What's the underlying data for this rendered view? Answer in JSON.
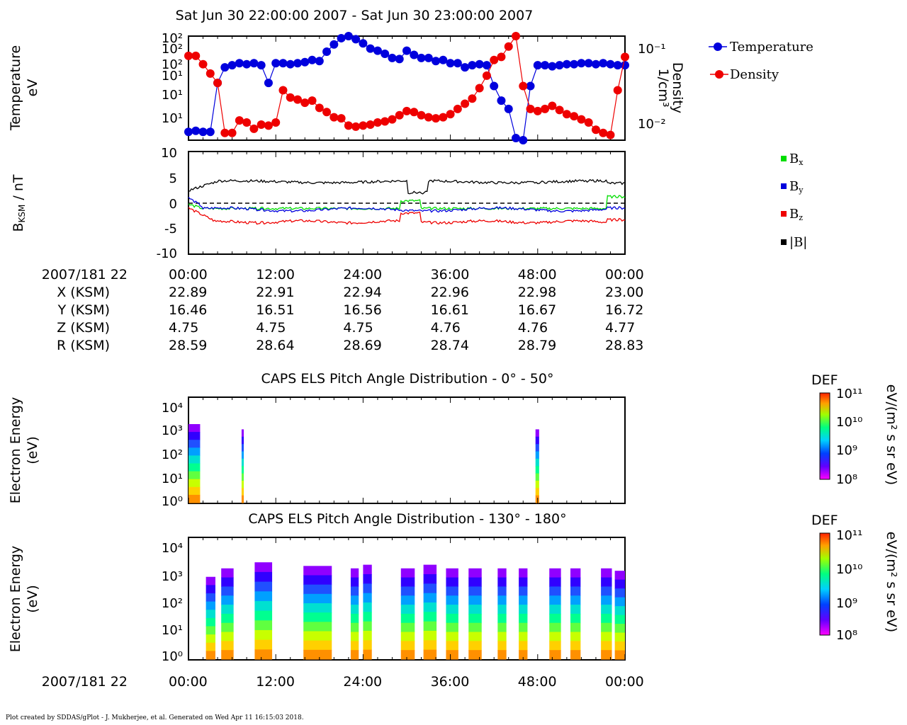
{
  "header": {
    "title": "Sat Jun 30 22:00:00 2007 - Sat Jun 30 23:00:00 2007"
  },
  "footer": {
    "credit": "Plot created by SDDAS/gPlot - J. Mukherjee, et al.  Generated on Wed Apr 11 16:15:03 2018."
  },
  "ephemeris": {
    "time_label": "2007/181 22",
    "rows": [
      {
        "label": "X (KSM)",
        "values": [
          "22.89",
          "22.91",
          "22.94",
          "22.96",
          "22.98",
          "23.00"
        ]
      },
      {
        "label": "Y (KSM)",
        "values": [
          "16.46",
          "16.51",
          "16.56",
          "16.61",
          "16.67",
          "16.72"
        ]
      },
      {
        "label": "Z (KSM)",
        "values": [
          "4.75",
          "4.75",
          "4.75",
          "4.76",
          "4.76",
          "4.77"
        ]
      },
      {
        "label": "R (KSM)",
        "values": [
          "28.59",
          "28.64",
          "28.69",
          "28.74",
          "28.79",
          "28.83"
        ]
      }
    ]
  },
  "chart_data": [
    {
      "type": "scatter",
      "title": "",
      "ylabel": "Temperature eV",
      "y2label": "Density 1/cm³",
      "y_ticks": [
        "10¹",
        "10¹",
        "10¹",
        "10²",
        "10²",
        "10²"
      ],
      "y2_ticks": [
        "10⁻¹",
        "10⁻²"
      ],
      "x_ticks": [
        "00:00",
        "12:00",
        "24:00",
        "36:00",
        "48:00",
        "00:00"
      ],
      "legend_position": "right",
      "colors": {
        "temperature": "#0000dd",
        "density": "#ee0000"
      },
      "series": [
        {
          "name": "Temperature",
          "x": [
            0,
            1,
            2,
            3,
            4,
            5,
            6,
            7,
            8,
            9,
            10,
            11,
            12,
            13,
            14,
            15,
            16,
            17,
            18,
            19,
            20,
            21,
            22,
            23,
            24,
            25,
            26,
            27,
            28,
            29,
            30,
            31,
            32,
            33,
            34,
            35,
            36,
            37,
            38,
            39,
            40,
            41,
            42,
            43,
            44,
            45,
            46,
            47,
            48,
            49,
            50,
            51,
            52,
            53,
            54,
            55,
            56,
            57,
            58,
            59,
            60
          ],
          "y": [
            0.08,
            0.09,
            0.08,
            0.08,
            0.55,
            0.7,
            0.72,
            0.74,
            0.73,
            0.74,
            0.72,
            0.55,
            0.74,
            0.74,
            0.73,
            0.74,
            0.75,
            0.77,
            0.76,
            0.85,
            0.92,
            0.98,
            1.0,
            0.97,
            0.93,
            0.88,
            0.86,
            0.83,
            0.79,
            0.78,
            0.86,
            0.82,
            0.79,
            0.79,
            0.76,
            0.77,
            0.74,
            0.74,
            0.7,
            0.72,
            0.73,
            0.72,
            0.52,
            0.38,
            0.3,
            0.02,
            0.0,
            0.52,
            0.72,
            0.72,
            0.71,
            0.72,
            0.73,
            0.73,
            0.74,
            0.74,
            0.73,
            0.74,
            0.73,
            0.72,
            0.72
          ]
        },
        {
          "name": "Density",
          "x": [
            0,
            1,
            2,
            3,
            4,
            5,
            6,
            7,
            8,
            9,
            10,
            11,
            12,
            13,
            14,
            15,
            16,
            17,
            18,
            19,
            20,
            21,
            22,
            23,
            24,
            25,
            26,
            27,
            28,
            29,
            30,
            31,
            32,
            33,
            34,
            35,
            36,
            37,
            38,
            39,
            40,
            41,
            42,
            43,
            44,
            45,
            46,
            47,
            48,
            49,
            50,
            51,
            52,
            53,
            54,
            55,
            56,
            57,
            58,
            59,
            60
          ],
          "y": [
            0.81,
            0.81,
            0.73,
            0.64,
            0.55,
            0.07,
            0.07,
            0.19,
            0.17,
            0.11,
            0.15,
            0.14,
            0.17,
            0.48,
            0.41,
            0.39,
            0.36,
            0.38,
            0.31,
            0.27,
            0.22,
            0.21,
            0.14,
            0.13,
            0.14,
            0.15,
            0.17,
            0.18,
            0.2,
            0.24,
            0.28,
            0.27,
            0.24,
            0.22,
            0.21,
            0.22,
            0.25,
            0.3,
            0.35,
            0.4,
            0.5,
            0.62,
            0.77,
            0.8,
            0.9,
            1.0,
            0.52,
            0.3,
            0.28,
            0.3,
            0.33,
            0.29,
            0.25,
            0.23,
            0.2,
            0.17,
            0.1,
            0.07,
            0.05,
            0.48,
            0.8
          ]
        }
      ]
    },
    {
      "type": "line",
      "title": "",
      "ylabel": "BKSM / nT",
      "ylim": [
        -10,
        10
      ],
      "y_ticks": [
        "10",
        "5",
        "0",
        "-5",
        "-10"
      ],
      "legend_position": "right",
      "series": [
        {
          "name": "Bx",
          "color": "#00dd00"
        },
        {
          "name": "By",
          "color": "#0000dd"
        },
        {
          "name": "Bz",
          "color": "#ee0000"
        },
        {
          "name": "|B|",
          "color": "#000000"
        }
      ]
    },
    {
      "type": "heatmap",
      "title": "CAPS ELS Pitch Angle Distribution - 0° - 50°",
      "ylabel": "Electron Energy (eV)",
      "y_ticks": [
        "10⁴",
        "10³",
        "10²",
        "10¹",
        "10⁰"
      ],
      "colorbar": {
        "label": "DEF",
        "unit": "eV/(m² s sr eV)",
        "ticks": [
          "10¹¹",
          "10¹⁰",
          "10⁹",
          "10⁸"
        ]
      }
    },
    {
      "type": "heatmap",
      "title": "CAPS ELS Pitch Angle Distribution - 130° - 180°",
      "ylabel": "Electron Energy (eV)",
      "y_ticks": [
        "10⁴",
        "10³",
        "10²",
        "10¹",
        "10⁰"
      ],
      "x_label": "2007/181 22",
      "x_ticks": [
        "00:00",
        "12:00",
        "24:00",
        "36:00",
        "48:00",
        "00:00"
      ],
      "colorbar": {
        "label": "DEF",
        "unit": "eV/(m² s sr eV)",
        "ticks": [
          "10¹¹",
          "10¹⁰",
          "10⁹",
          "10⁸"
        ]
      }
    }
  ]
}
